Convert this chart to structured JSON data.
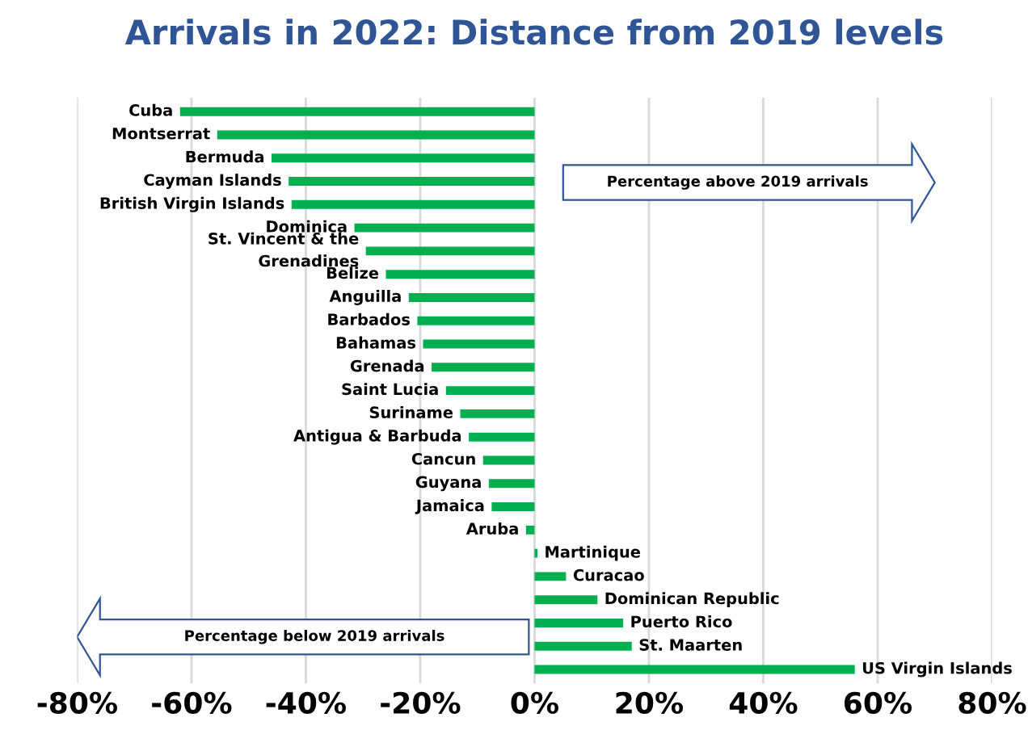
{
  "chart_data": {
    "type": "bar",
    "orientation": "horizontal",
    "title": "Arrivals in 2022: Distance from 2019 levels",
    "categories": [
      "Cuba",
      "Montserrat",
      "Bermuda",
      "Cayman Islands",
      "British Virgin Islands",
      "Dominica",
      "St. Vincent & the\nGrenadines",
      "Belize",
      "Anguilla",
      "Barbados",
      "Bahamas",
      "Grenada",
      "Saint Lucia",
      "Suriname",
      "Antigua & Barbuda",
      "Cancun",
      "Guyana",
      "Jamaica",
      "Aruba",
      "Martinique",
      "Curacao",
      "Dominican Republic",
      "Puerto Rico",
      "St. Maarten",
      "US Virgin Islands"
    ],
    "values": [
      -62,
      -55.5,
      -46,
      -43,
      -42.5,
      -31.5,
      -29.5,
      -26,
      -22,
      -20.5,
      -19.5,
      -18,
      -15.5,
      -13,
      -11.5,
      -9,
      -8,
      -7.5,
      -1.5,
      0.5,
      5.5,
      11,
      15.5,
      17,
      56
    ],
    "color": "#00b050",
    "xlim": [
      -80,
      80
    ],
    "xticks": [
      {
        "value": -80,
        "label": "-80%"
      },
      {
        "value": -60,
        "label": "-60%"
      },
      {
        "value": -40,
        "label": "-40%"
      },
      {
        "value": -20,
        "label": "-20%"
      },
      {
        "value": 0,
        "label": "0%"
      },
      {
        "value": 20,
        "label": "20%"
      },
      {
        "value": 40,
        "label": "40%"
      },
      {
        "value": 60,
        "label": "60%"
      },
      {
        "value": 80,
        "label": "80%"
      }
    ],
    "grid": "x",
    "tick_labels": "x",
    "annotations": [
      "Percentage above 2019 arrivals",
      "Percentage below 2019 arrivals"
    ]
  }
}
